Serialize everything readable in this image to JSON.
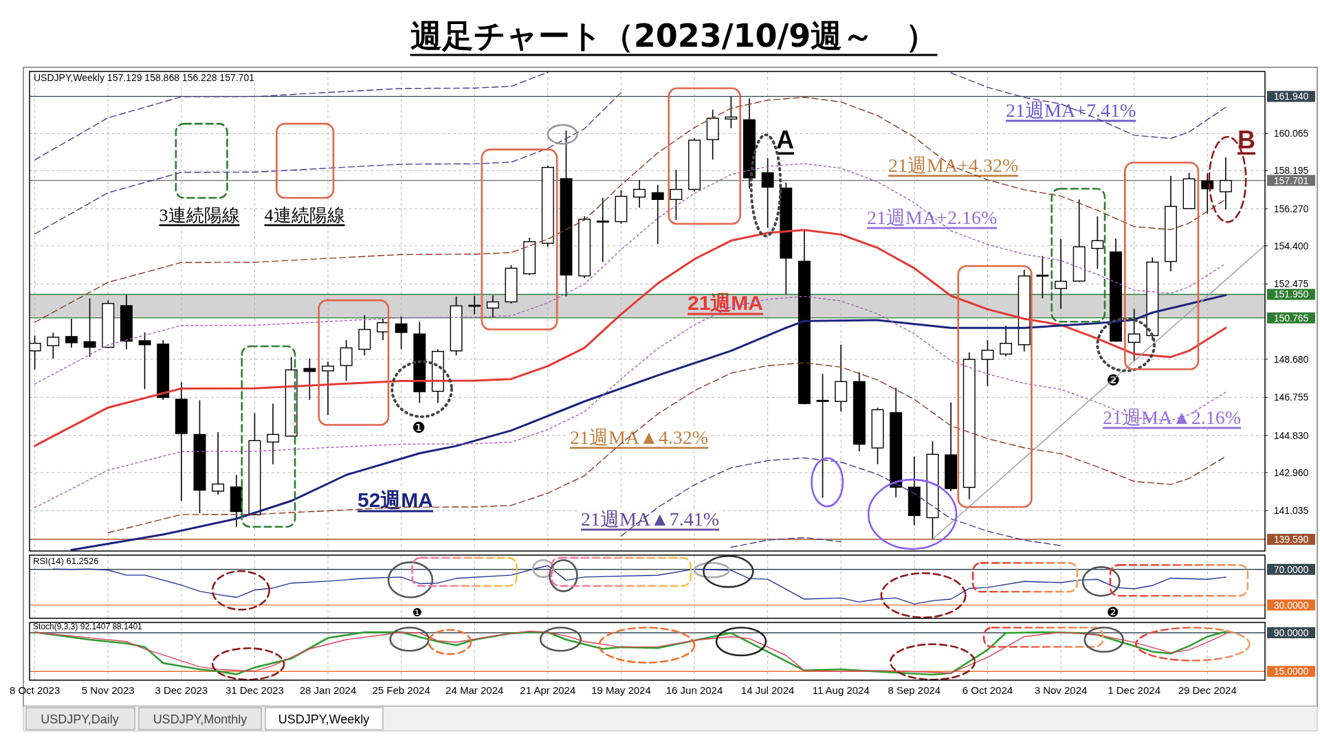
{
  "chart_data": [
    {
      "type": "candlestick",
      "title": "週足チャート（2023/10/9週～　）",
      "subtitle": "USDJPY,Weekly 157.129 158.868 156.228 157.701",
      "x": [
        "2023-10-08",
        "2023-10-15",
        "2023-10-22",
        "2023-10-29",
        "2023-11-05",
        "2023-11-12",
        "2023-11-19",
        "2023-11-26",
        "2023-12-03",
        "2023-12-10",
        "2023-12-17",
        "2023-12-24",
        "2023-12-31",
        "2024-01-07",
        "2024-01-14",
        "2024-01-21",
        "2024-01-28",
        "2024-02-04",
        "2024-02-11",
        "2024-02-18",
        "2024-02-25",
        "2024-03-03",
        "2024-03-10",
        "2024-03-17",
        "2024-03-24",
        "2024-03-31",
        "2024-04-07",
        "2024-04-14",
        "2024-04-21",
        "2024-04-28",
        "2024-05-05",
        "2024-05-12",
        "2024-05-19",
        "2024-05-26",
        "2024-06-02",
        "2024-06-09",
        "2024-06-16",
        "2024-06-23",
        "2024-06-30",
        "2024-07-07",
        "2024-07-14",
        "2024-07-21",
        "2024-07-28",
        "2024-08-04",
        "2024-08-11",
        "2024-08-18",
        "2024-08-25",
        "2024-09-01",
        "2024-09-08",
        "2024-09-15",
        "2024-09-22",
        "2024-09-29",
        "2024-10-06",
        "2024-10-13",
        "2024-10-20",
        "2024-10-27",
        "2024-11-03",
        "2024-11-10",
        "2024-11-17",
        "2024-11-24",
        "2024-12-01",
        "2024-12-08",
        "2024-12-15",
        "2024-12-22",
        "2024-12-29",
        "2025-01-05"
      ],
      "ohlc": [
        [
          149.1,
          149.87,
          148.17,
          149.48
        ],
        [
          149.36,
          150.02,
          148.71,
          149.79
        ],
        [
          149.82,
          150.72,
          149.25,
          149.51
        ],
        [
          149.56,
          151.75,
          148.79,
          149.28
        ],
        [
          149.28,
          151.65,
          149.25,
          151.49
        ],
        [
          151.38,
          151.92,
          149.18,
          149.59
        ],
        [
          149.61,
          150.03,
          147.17,
          149.41
        ],
        [
          149.44,
          149.64,
          146.63,
          146.75
        ],
        [
          146.66,
          147.52,
          141.53,
          144.93
        ],
        [
          144.88,
          146.6,
          140.91,
          142.07
        ],
        [
          142.02,
          145.0,
          141.84,
          142.38
        ],
        [
          142.23,
          142.84,
          140.22,
          140.99
        ],
        [
          140.83,
          145.96,
          140.8,
          144.57
        ],
        [
          144.5,
          146.44,
          143.38,
          144.88
        ],
        [
          144.8,
          148.79,
          144.78,
          148.14
        ],
        [
          148.21,
          148.71,
          146.63,
          148.06
        ],
        [
          148.09,
          148.56,
          145.86,
          148.33
        ],
        [
          148.36,
          149.64,
          147.58,
          149.25
        ],
        [
          149.18,
          150.9,
          148.87,
          150.18
        ],
        [
          150.06,
          150.72,
          149.64,
          150.52
        ],
        [
          150.46,
          150.83,
          149.18,
          150.03
        ],
        [
          149.95,
          150.56,
          146.47,
          147.04
        ],
        [
          147.06,
          149.18,
          146.47,
          149.07
        ],
        [
          149.1,
          151.85,
          148.87,
          151.37
        ],
        [
          151.35,
          151.88,
          150.95,
          151.4
        ],
        [
          151.26,
          151.91,
          150.8,
          151.57
        ],
        [
          151.57,
          153.42,
          151.49,
          153.27
        ],
        [
          152.99,
          154.81,
          152.93,
          154.61
        ],
        [
          154.53,
          158.44,
          154.35,
          158.36
        ],
        [
          157.79,
          160.22,
          151.85,
          152.93
        ],
        [
          152.88,
          155.89,
          152.77,
          155.74
        ],
        [
          155.62,
          156.82,
          153.58,
          155.65
        ],
        [
          155.62,
          157.21,
          155.51,
          156.9
        ],
        [
          156.86,
          157.72,
          156.33,
          157.25
        ],
        [
          157.08,
          157.47,
          154.5,
          156.74
        ],
        [
          156.74,
          158.24,
          155.71,
          157.25
        ],
        [
          157.25,
          159.83,
          157.13,
          159.73
        ],
        [
          159.76,
          161.27,
          158.75,
          160.84
        ],
        [
          160.8,
          161.95,
          160.34,
          160.9
        ],
        [
          160.76,
          161.84,
          157.29,
          157.83
        ],
        [
          158.09,
          158.83,
          155.31,
          157.36
        ],
        [
          157.31,
          157.59,
          151.96,
          153.78
        ],
        [
          153.62,
          155.2,
          146.4,
          146.44
        ],
        [
          146.55,
          147.94,
          141.68,
          146.6
        ],
        [
          146.55,
          149.41,
          146.04,
          147.55
        ],
        [
          147.55,
          148.02,
          144.03,
          144.39
        ],
        [
          144.2,
          146.24,
          143.38,
          146.13
        ],
        [
          145.98,
          147.24,
          141.71,
          142.22
        ],
        [
          142.22,
          143.77,
          140.29,
          140.79
        ],
        [
          140.68,
          144.54,
          139.57,
          143.88
        ],
        [
          143.85,
          146.5,
          142.02,
          142.15
        ],
        [
          142.21,
          149.02,
          141.61,
          148.67
        ],
        [
          148.67,
          149.64,
          147.32,
          149.13
        ],
        [
          148.94,
          150.37,
          148.82,
          149.48
        ],
        [
          149.41,
          153.19,
          149.07,
          152.88
        ],
        [
          152.9,
          153.89,
          151.75,
          152.92
        ],
        [
          152.25,
          154.74,
          151.23,
          152.61
        ],
        [
          152.62,
          156.74,
          152.57,
          154.35
        ],
        [
          154.27,
          155.89,
          153.24,
          154.66
        ],
        [
          154.09,
          154.77,
          149.56,
          149.59
        ],
        [
          149.53,
          151.22,
          148.56,
          149.95
        ],
        [
          149.87,
          153.81,
          149.64,
          153.58
        ],
        [
          153.61,
          157.93,
          153.11,
          156.39
        ],
        [
          156.28,
          158.09,
          156.28,
          157.78
        ],
        [
          157.67,
          158.06,
          156.02,
          157.28
        ],
        [
          157.129,
          158.868,
          156.228,
          157.701
        ]
      ],
      "series": [
        {
          "type": "line",
          "color": "#e53935",
          "line_style": "solid",
          "x": [
            "2023-10-08",
            "2023-11-05",
            "2023-12-03",
            "2023-12-31",
            "2024-01-28",
            "2024-02-25",
            "2024-03-24",
            "2024-04-07",
            "2024-04-21",
            "2024-05-05",
            "2024-05-19",
            "2024-06-02",
            "2024-06-16",
            "2024-06-30",
            "2024-07-14",
            "2024-07-28",
            "2024-08-11",
            "2024-08-25",
            "2024-09-08",
            "2024-09-22",
            "2024-10-06",
            "2024-10-20",
            "2024-11-03",
            "2024-11-17",
            "2024-12-01",
            "2024-12-15",
            "2024-12-22",
            "2025-01-05"
          ],
          "values": [
            144.31,
            146.24,
            147.2,
            147.21,
            147.4,
            147.58,
            147.6,
            147.68,
            148.33,
            149.25,
            150.95,
            152.5,
            153.73,
            154.66,
            155.05,
            155.2,
            154.97,
            154.3,
            153.27,
            151.88,
            151.2,
            150.72,
            150.41,
            149.72,
            148.94,
            148.79,
            149.1,
            150.26
          ]
        },
        {
          "type": "line",
          "color": "#1a237e",
          "line_style": "solid",
          "x": [
            "2023-10-22",
            "2023-11-26",
            "2023-12-24",
            "2024-01-14",
            "2024-02-04",
            "2024-03-03",
            "2024-03-17",
            "2024-04-07",
            "2024-05-05",
            "2024-06-02",
            "2024-06-30",
            "2024-07-21",
            "2024-07-28",
            "2024-08-25",
            "2024-09-22",
            "2024-10-20",
            "2024-11-17",
            "2024-12-01",
            "2024-12-08",
            "2025-01-05"
          ],
          "values": [
            139.05,
            139.83,
            140.63,
            141.53,
            142.84,
            143.93,
            144.3,
            145.08,
            146.55,
            147.86,
            149.1,
            150.26,
            150.61,
            150.65,
            150.26,
            150.26,
            150.49,
            150.67,
            151.03,
            151.91
          ]
        },
        {
          "type": "line",
          "color": "#a060c0",
          "line_style": "dotted",
          "x": [
            "2023-10-08",
            "2023-11-05",
            "2023-12-03",
            "2023-12-31",
            "2024-01-28",
            "2024-02-25",
            "2024-03-24",
            "2024-04-07",
            "2024-04-21",
            "2024-05-05",
            "2024-05-19",
            "2024-06-02",
            "2024-06-16",
            "2024-06-30",
            "2024-07-14",
            "2024-07-28",
            "2024-08-11",
            "2024-08-25",
            "2024-09-08",
            "2024-09-22",
            "2024-10-06",
            "2024-10-20",
            "2024-11-03",
            "2024-11-17",
            "2024-12-01",
            "2024-12-15",
            "2024-12-22",
            "2025-01-05"
          ],
          "values": [
            147.43,
            149.4,
            150.38,
            150.39,
            150.58,
            150.77,
            150.79,
            150.87,
            151.53,
            152.47,
            154.21,
            155.79,
            157.05,
            158.0,
            158.4,
            158.55,
            158.32,
            157.63,
            156.58,
            155.16,
            154.47,
            153.98,
            153.66,
            152.95,
            152.16,
            152.0,
            152.32,
            153.51
          ]
        },
        {
          "type": "line",
          "color": "#8b3a2a",
          "line_style": "dashed",
          "x": [
            "2023-10-08",
            "2023-11-05",
            "2023-12-03",
            "2023-12-31",
            "2024-01-28",
            "2024-02-25",
            "2024-03-24",
            "2024-04-07",
            "2024-04-21",
            "2024-05-05",
            "2024-05-19",
            "2024-06-02",
            "2024-06-16",
            "2024-06-30",
            "2024-07-14",
            "2024-07-28",
            "2024-08-11",
            "2024-08-25",
            "2024-09-08",
            "2024-09-22",
            "2024-10-06",
            "2024-10-20",
            "2024-11-03",
            "2024-11-17",
            "2024-12-01",
            "2024-12-15",
            "2024-12-22",
            "2025-01-05"
          ],
          "values": [
            150.54,
            152.56,
            153.56,
            153.57,
            153.77,
            153.96,
            153.98,
            154.06,
            154.74,
            155.7,
            157.47,
            159.09,
            160.37,
            161.34,
            161.75,
            161.9,
            161.66,
            160.97,
            159.89,
            158.44,
            157.73,
            157.23,
            156.91,
            156.19,
            155.37,
            155.22,
            155.54,
            156.75
          ]
        },
        {
          "type": "line",
          "color": "#4b3d8f",
          "line_style": "dashed",
          "x": [
            "2023-10-08",
            "2023-11-05",
            "2023-12-03",
            "2023-12-31",
            "2024-01-28",
            "2024-02-25",
            "2024-03-24",
            "2024-04-07",
            "2024-04-21",
            "2024-05-05",
            "2024-05-19",
            "2024-06-02",
            "2024-06-16",
            "2024-06-30",
            "2024-07-14",
            "2024-07-28",
            "2024-08-11",
            "2024-08-25",
            "2024-09-08",
            "2024-09-22",
            "2024-10-06",
            "2024-10-20",
            "2024-11-03",
            "2024-11-17",
            "2024-12-01",
            "2024-12-15",
            "2024-12-22",
            "2025-01-05"
          ],
          "values": [
            155.0,
            157.08,
            158.11,
            158.12,
            158.32,
            158.52,
            158.54,
            158.62,
            159.32,
            160.31,
            162.14,
            null,
            null,
            null,
            null,
            null,
            null,
            null,
            null,
            163.13,
            162.4,
            161.89,
            161.56,
            160.81,
            159.98,
            159.82,
            160.15,
            161.39
          ]
        },
        {
          "type": "line",
          "color": "#4b3d8f",
          "line_style": "dashed",
          "x": [
            "2023-10-08",
            "2023-11-05",
            "2023-12-03",
            "2023-12-31",
            "2024-01-28",
            "2024-02-25",
            "2024-03-24",
            "2024-04-07",
            "2024-04-21"
          ],
          "values": [
            158.74,
            160.86,
            161.92,
            161.93,
            162.14,
            162.34,
            162.36,
            162.45,
            163.16
          ]
        },
        {
          "type": "line",
          "color": "#a060c0",
          "line_style": "dotted",
          "x": [
            "2023-10-08",
            "2023-11-05",
            "2023-12-03",
            "2023-12-31",
            "2024-01-28",
            "2024-02-25",
            "2024-03-24",
            "2024-04-07",
            "2024-04-21",
            "2024-05-05",
            "2024-05-19",
            "2024-06-02",
            "2024-06-16",
            "2024-06-30",
            "2024-07-14",
            "2024-07-28",
            "2024-08-11",
            "2024-08-25",
            "2024-09-08",
            "2024-09-22",
            "2024-10-06",
            "2024-10-20",
            "2024-11-03",
            "2024-11-17",
            "2024-12-01",
            "2024-12-15",
            "2024-12-22",
            "2025-01-05"
          ],
          "values": [
            141.19,
            143.08,
            144.02,
            144.03,
            144.22,
            144.39,
            144.41,
            144.49,
            145.13,
            146.03,
            147.69,
            149.21,
            150.41,
            151.32,
            151.7,
            151.85,
            151.62,
            150.97,
            149.96,
            148.6,
            147.93,
            147.46,
            147.16,
            146.49,
            145.72,
            145.58,
            145.88,
            147.01
          ]
        },
        {
          "type": "line",
          "color": "#8b3a2a",
          "line_style": "dashed",
          "x": [
            "2023-11-05",
            "2023-12-03",
            "2023-12-31",
            "2024-01-28",
            "2024-02-25",
            "2024-03-24",
            "2024-04-07",
            "2024-04-21",
            "2024-05-05",
            "2024-05-19",
            "2024-06-02",
            "2024-06-16",
            "2024-06-30",
            "2024-07-14",
            "2024-07-28",
            "2024-08-11",
            "2024-08-25",
            "2024-09-08",
            "2024-09-22",
            "2024-10-06",
            "2024-10-20",
            "2024-11-03",
            "2024-11-17",
            "2024-12-01",
            "2024-12-15",
            "2024-12-22",
            "2025-01-05"
          ],
          "values": [
            139.92,
            140.84,
            140.85,
            141.03,
            141.21,
            141.22,
            141.3,
            141.92,
            142.8,
            144.43,
            145.91,
            147.09,
            147.98,
            148.35,
            148.5,
            148.28,
            147.63,
            146.65,
            145.32,
            144.67,
            144.21,
            143.91,
            143.25,
            142.51,
            142.36,
            142.66,
            143.77
          ]
        },
        {
          "type": "line",
          "color": "#4b3d8f",
          "line_style": "dashed",
          "x": [
            "2024-05-19",
            "2024-06-02",
            "2024-06-16",
            "2024-06-30",
            "2024-07-14",
            "2024-07-28",
            "2024-08-11",
            "2024-08-25",
            "2024-09-08",
            "2024-09-22",
            "2024-10-06",
            "2024-10-20",
            "2024-11-03"
          ],
          "values": [
            139.76,
            141.2,
            142.34,
            143.2,
            143.56,
            143.7,
            143.49,
            142.87,
            141.91,
            140.63,
            140.0,
            139.55,
            139.27
          ]
        },
        {
          "type": "line",
          "color": "#4b3d8f",
          "line_style": "dashed",
          "x": [
            "2024-06-30",
            "2024-07-14",
            "2024-07-28",
            "2024-08-11"
          ],
          "values": [
            139.19,
            139.55,
            139.68,
            139.47
          ]
        },
        {
          "type": "line",
          "color": "#9aa0b0",
          "line_style": "solid",
          "x": [
            "2024-09-15",
            "2025-01-20"
          ],
          "values": [
            139.6,
            154.43
          ]
        }
      ],
      "xlim": [
        "2023-10-06",
        "2025-01-20"
      ],
      "ylim": [
        139.0,
        163.2
      ],
      "xticks": [
        {
          "value": "2023-10-08",
          "label": null
        },
        {
          "value": "2023-11-05",
          "label": null
        },
        {
          "value": "2023-12-03",
          "label": null
        },
        {
          "value": "2023-12-31",
          "label": null
        },
        {
          "value": "2024-01-28",
          "label": null
        },
        {
          "value": "2024-02-25",
          "label": null
        },
        {
          "value": "2024-03-24",
          "label": null
        },
        {
          "value": "2024-04-21",
          "label": null
        },
        {
          "value": "2024-05-19",
          "label": null
        },
        {
          "value": "2024-06-16",
          "label": null
        },
        {
          "value": "2024-07-14",
          "label": null
        },
        {
          "value": "2024-08-11",
          "label": null
        },
        {
          "value": "2024-09-08",
          "label": null
        },
        {
          "value": "2024-10-06",
          "label": null
        },
        {
          "value": "2024-11-03",
          "label": null
        },
        {
          "value": "2024-12-01",
          "label": null
        },
        {
          "value": "2024-12-29",
          "label": null
        }
      ],
      "yticks": [
        {
          "value": 141.035,
          "label": "141.035"
        },
        {
          "value": 142.96,
          "label": "142.960"
        },
        {
          "value": 144.83,
          "label": "144.830"
        },
        {
          "value": 146.755,
          "label": "146.755"
        },
        {
          "value": 148.68,
          "label": "148.680"
        },
        {
          "value": 152.475,
          "label": "152.475"
        },
        {
          "value": 154.4,
          "label": "154.400"
        },
        {
          "value": 156.27,
          "label": "156.270"
        },
        {
          "value": 158.195,
          "label": "158.195"
        },
        {
          "value": 160.065,
          "label": "160.065"
        }
      ],
      "tick_labels": "y",
      "grid": true,
      "bands": [
        {
          "axis": "y",
          "from": 150.765,
          "to": 151.95,
          "color": "#d3d3d3"
        }
      ],
      "ref_lines": [
        {
          "axis": "y",
          "value": 161.94,
          "label": "161.940",
          "color": "#37474f"
        },
        {
          "axis": "y",
          "value": 151.95,
          "label": "151.950",
          "color": "#2e7d32"
        },
        {
          "axis": "y",
          "value": 150.765,
          "label": "150.765",
          "color": "#2e7d32"
        },
        {
          "axis": "y",
          "value": 139.59,
          "label": "139.590",
          "color": "#a0522d"
        },
        {
          "axis": "y",
          "value": 157.701,
          "label": "157.701",
          "color": "#707070"
        }
      ],
      "annotations": [
        "21週MA",
        "52週MA",
        "21週MA+7.41%",
        "21週MA+4.32%",
        "21週MA+2.16%",
        "21週MA▲2.16%",
        "21週MA▲4.32%",
        "21週MA▲7.41%",
        "A",
        "B",
        "❶",
        "❷",
        "3連続陽線",
        "4連続陽線",
        "USDJPY,Daily",
        "USDJPY,Monthly",
        "USDJPY,Weekly"
      ]
    },
    {
      "type": "line",
      "title": "RSI(14) 61.2526",
      "series": [
        {
          "color": "#283593",
          "line_style": "solid",
          "x": [
            "2023-10-15",
            "2023-10-22",
            "2023-10-29",
            "2023-11-05",
            "2023-11-12",
            "2023-11-19",
            "2023-12-03",
            "2023-12-10",
            "2023-12-17",
            "2023-12-24",
            "2023-12-31",
            "2024-01-07",
            "2024-01-14",
            "2024-01-28",
            "2024-02-11",
            "2024-02-25",
            "2024-03-03",
            "2024-03-10",
            "2024-03-17",
            "2024-04-07",
            "2024-04-14",
            "2024-04-21",
            "2024-04-28",
            "2024-05-05",
            "2024-06-02",
            "2024-06-16",
            "2024-06-30",
            "2024-07-07",
            "2024-07-14",
            "2024-07-28",
            "2024-08-11",
            "2024-08-18",
            "2024-08-25",
            "2024-09-01",
            "2024-09-08",
            "2024-09-15",
            "2024-09-22",
            "2024-09-29",
            "2024-10-06",
            "2024-10-20",
            "2024-11-03",
            "2024-11-10",
            "2024-11-17",
            "2024-11-24",
            "2024-12-01",
            "2024-12-08",
            "2024-12-15",
            "2024-12-29",
            "2025-01-05"
          ],
          "values": [
            70.5,
            70.0,
            70.5,
            69.2,
            63.5,
            63.5,
            52.3,
            45.4,
            41.7,
            38.5,
            46.8,
            49.0,
            54.6,
            56.8,
            59.9,
            61.4,
            54.0,
            54.6,
            59.9,
            63.5,
            69.2,
            74.2,
            57.7,
            61.4,
            63.4,
            70.3,
            69.0,
            59.7,
            58.9,
            36.6,
            37.9,
            33.4,
            36.6,
            37.9,
            31.1,
            34.8,
            36.6,
            48.6,
            49.6,
            56.5,
            55.1,
            57.9,
            58.8,
            49.6,
            48.2,
            51.9,
            60.2,
            58.8,
            61.25
          ]
        }
      ],
      "xlim": [
        "2023-10-06",
        "2025-01-20"
      ],
      "ylim": [
        15,
        86
      ],
      "xticks": [
        {
          "value": "2023-10-08",
          "label": null
        },
        {
          "value": "2023-11-05",
          "label": null
        },
        {
          "value": "2023-12-03",
          "label": null
        },
        {
          "value": "2023-12-31",
          "label": null
        },
        {
          "value": "2024-01-28",
          "label": null
        },
        {
          "value": "2024-02-25",
          "label": null
        },
        {
          "value": "2024-03-24",
          "label": null
        },
        {
          "value": "2024-04-21",
          "label": null
        },
        {
          "value": "2024-05-19",
          "label": null
        },
        {
          "value": "2024-06-16",
          "label": null
        },
        {
          "value": "2024-07-14",
          "label": null
        },
        {
          "value": "2024-08-11",
          "label": null
        },
        {
          "value": "2024-09-08",
          "label": null
        },
        {
          "value": "2024-10-06",
          "label": null
        },
        {
          "value": "2024-11-03",
          "label": null
        },
        {
          "value": "2024-12-01",
          "label": null
        },
        {
          "value": "2024-12-29",
          "label": null
        }
      ],
      "tick_labels": false,
      "grid": "x",
      "ref_lines": [
        {
          "axis": "y",
          "value": 70,
          "label": "70.0000",
          "color": "#37474f"
        },
        {
          "axis": "y",
          "value": 30,
          "label": "30.0000",
          "color": "#e8702a"
        }
      ],
      "annotations": [
        "❶",
        "❷"
      ]
    },
    {
      "type": "line",
      "title": "Stoch(9,3,3) 92.1407 88.1401",
      "series": [
        {
          "color": "#2e9e2e",
          "line_style": "solid",
          "x": [
            "2023-10-08",
            "2023-10-29",
            "2023-11-12",
            "2023-11-19",
            "2023-11-26",
            "2023-12-10",
            "2023-12-17",
            "2023-12-24",
            "2023-12-31",
            "2024-01-14",
            "2024-01-28",
            "2024-02-11",
            "2024-02-25",
            "2024-03-03",
            "2024-03-10",
            "2024-03-17",
            "2024-03-24",
            "2024-04-07",
            "2024-04-14",
            "2024-04-21",
            "2024-04-28",
            "2024-05-12",
            "2024-05-19",
            "2024-06-02",
            "2024-06-16",
            "2024-06-30",
            "2024-07-14",
            "2024-07-28",
            "2024-08-11",
            "2024-08-25",
            "2024-09-15",
            "2024-09-22",
            "2024-10-06",
            "2024-10-13",
            "2024-10-27",
            "2024-11-10",
            "2024-11-17",
            "2024-11-24",
            "2024-12-08",
            "2024-12-15",
            "2024-12-22",
            "2024-12-29",
            "2025-01-05"
          ],
          "values": [
            91.1,
            76.7,
            69.4,
            62.2,
            31.2,
            19.0,
            15.4,
            9.5,
            22.5,
            40.0,
            80.0,
            91.0,
            91.0,
            81.7,
            73.0,
            65.8,
            76.7,
            88.9,
            91.0,
            91.0,
            76.7,
            58.6,
            62.2,
            60.5,
            75.1,
            89.6,
            53.2,
            16.8,
            19.0,
            14.6,
            8.7,
            11.7,
            56.9,
            89.6,
            91.0,
            89.6,
            86.0,
            75.1,
            53.2,
            49.6,
            64.2,
            82.4,
            92.1
          ]
        },
        {
          "color": "#e0405a",
          "line_style": "solid",
          "x": [
            "2023-10-08",
            "2023-10-29",
            "2023-11-12",
            "2023-11-19",
            "2023-12-10",
            "2023-12-17",
            "2023-12-31",
            "2024-01-07",
            "2024-01-21",
            "2024-02-04",
            "2024-02-18",
            "2024-02-25",
            "2024-03-03",
            "2024-03-10",
            "2024-03-17",
            "2024-03-31",
            "2024-04-14",
            "2024-04-21",
            "2024-04-28",
            "2024-05-05",
            "2024-05-19",
            "2024-06-02",
            "2024-06-16",
            "2024-06-30",
            "2024-07-07",
            "2024-07-21",
            "2024-07-28",
            "2024-08-11",
            "2024-08-25",
            "2024-09-08",
            "2024-09-22",
            "2024-10-06",
            "2024-10-20",
            "2024-11-03",
            "2024-11-17",
            "2024-12-01",
            "2024-12-15",
            "2024-12-22",
            "2024-12-29",
            "2025-01-05"
          ],
          "values": [
            91.0,
            80.2,
            73.0,
            58.6,
            23.9,
            19.0,
            15.4,
            26.1,
            58.6,
            76.7,
            86.0,
            91.0,
            89.6,
            74.4,
            71.7,
            83.8,
            93.2,
            91.0,
            83.8,
            73.0,
            62.2,
            62.8,
            75.1,
            82.4,
            78.7,
            46.0,
            16.8,
            14.6,
            16.8,
            14.6,
            11.7,
            42.3,
            82.4,
            91.0,
            86.0,
            71.5,
            51.1,
            56.9,
            71.5,
            88.1
          ]
        }
      ],
      "xlim": [
        "2023-10-06",
        "2025-01-20"
      ],
      "ylim": [
        -2,
        110
      ],
      "xticks": [
        {
          "value": "2023-10-08",
          "label": "8 Oct 2023"
        },
        {
          "value": "2023-11-05",
          "label": "5 Nov 2023"
        },
        {
          "value": "2023-12-03",
          "label": "3 Dec 2023"
        },
        {
          "value": "2023-12-31",
          "label": "31 Dec 2023"
        },
        {
          "value": "2024-01-28",
          "label": "28 Jan 2024"
        },
        {
          "value": "2024-02-25",
          "label": "25 Feb 2024"
        },
        {
          "value": "2024-03-24",
          "label": "24 Mar 2024"
        },
        {
          "value": "2024-04-21",
          "label": "21 Apr 2024"
        },
        {
          "value": "2024-05-19",
          "label": "19 May 2024"
        },
        {
          "value": "2024-06-16",
          "label": "16 Jun 2024"
        },
        {
          "value": "2024-07-14",
          "label": "14 Jul 2024"
        },
        {
          "value": "2024-08-11",
          "label": "11 Aug 2024"
        },
        {
          "value": "2024-09-08",
          "label": "8 Sep 2024"
        },
        {
          "value": "2024-10-06",
          "label": "6 Oct 2024"
        },
        {
          "value": "2024-11-03",
          "label": "3 Nov 2024"
        },
        {
          "value": "2024-12-01",
          "label": "1 Dec 2024"
        },
        {
          "value": "2024-12-29",
          "label": "29 Dec 2024"
        }
      ],
      "tick_labels": "x",
      "grid": "x",
      "ref_lines": [
        {
          "axis": "y",
          "value": 90,
          "label": "90.0000",
          "color": "#37474f"
        },
        {
          "axis": "y",
          "value": 15,
          "label": "15.0000",
          "color": "#e8702a"
        }
      ]
    }
  ]
}
